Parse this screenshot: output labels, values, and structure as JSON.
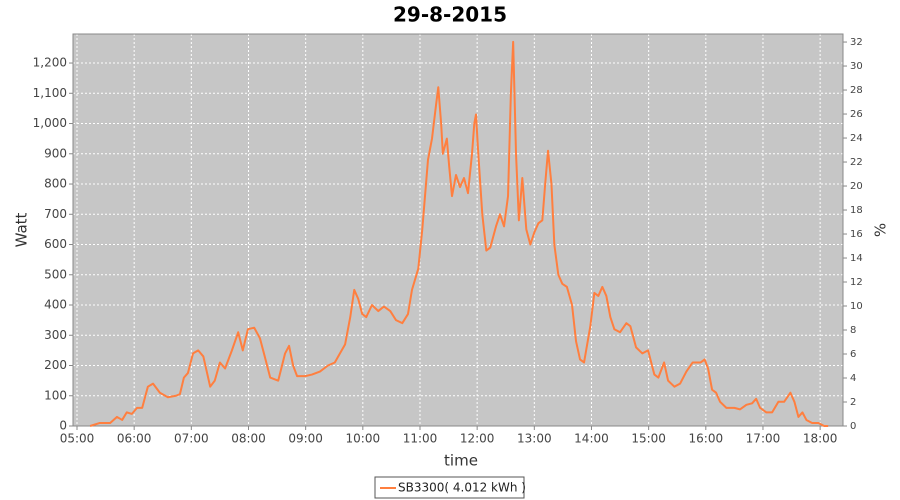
{
  "chart_data": {
    "type": "line",
    "title": "29-8-2015",
    "x_label": "time",
    "y_label": "Watt",
    "y2_label": "%",
    "x": [
      5.23,
      5.4,
      5.58,
      5.7,
      5.79,
      5.87,
      5.96,
      6.05,
      6.14,
      6.24,
      6.33,
      6.45,
      6.59,
      6.73,
      6.8,
      6.87,
      6.94,
      7.03,
      7.12,
      7.21,
      7.33,
      7.41,
      7.5,
      7.59,
      7.71,
      7.82,
      7.9,
      7.99,
      8.1,
      8.2,
      8.27,
      8.38,
      8.52,
      8.64,
      8.71,
      8.78,
      8.85,
      8.99,
      9.11,
      9.25,
      9.39,
      9.51,
      9.6,
      9.69,
      9.78,
      9.85,
      9.92,
      9.99,
      10.06,
      10.16,
      10.27,
      10.37,
      10.48,
      10.58,
      10.69,
      10.79,
      10.86,
      10.97,
      11.04,
      11.14,
      11.21,
      11.28,
      11.32,
      11.37,
      11.4,
      11.47,
      11.51,
      11.56,
      11.63,
      11.7,
      11.77,
      11.84,
      11.91,
      11.95,
      11.98,
      12.02,
      12.09,
      12.16,
      12.23,
      12.33,
      12.4,
      12.47,
      12.54,
      12.59,
      12.63,
      12.68,
      12.73,
      12.79,
      12.86,
      12.93,
      13.0,
      13.07,
      13.14,
      13.19,
      13.24,
      13.3,
      13.35,
      13.42,
      13.49,
      13.57,
      13.66,
      13.73,
      13.8,
      13.87,
      13.98,
      14.05,
      14.12,
      14.19,
      14.26,
      14.33,
      14.4,
      14.5,
      14.61,
      14.68,
      14.78,
      14.89,
      14.99,
      15.1,
      15.17,
      15.27,
      15.34,
      15.45,
      15.55,
      15.66,
      15.77,
      15.91,
      15.98,
      16.04,
      16.11,
      16.18,
      16.25,
      16.36,
      16.5,
      16.6,
      16.71,
      16.81,
      16.88,
      16.95,
      17.06,
      17.16,
      17.27,
      17.37,
      17.48,
      17.55,
      17.62,
      17.69,
      17.76,
      17.86,
      17.97,
      18.07,
      18.14
    ],
    "series": [
      {
        "name": "SB3300( 4.012 kWh )",
        "color": "#ff7f3f",
        "values": [
          0,
          10,
          10,
          30,
          20,
          45,
          40,
          60,
          60,
          130,
          140,
          110,
          95,
          100,
          105,
          160,
          175,
          240,
          250,
          230,
          130,
          150,
          210,
          190,
          250,
          310,
          250,
          320,
          325,
          290,
          240,
          160,
          150,
          240,
          265,
          200,
          165,
          165,
          170,
          180,
          200,
          210,
          240,
          270,
          360,
          450,
          420,
          370,
          360,
          400,
          380,
          395,
          380,
          350,
          340,
          370,
          450,
          520,
          650,
          880,
          950,
          1060,
          1120,
          1000,
          900,
          950,
          860,
          760,
          830,
          790,
          820,
          770,
          900,
          1000,
          1030,
          900,
          700,
          580,
          590,
          660,
          700,
          660,
          760,
          1100,
          1270,
          900,
          680,
          820,
          650,
          600,
          640,
          670,
          680,
          800,
          910,
          800,
          600,
          500,
          470,
          460,
          400,
          280,
          220,
          210,
          330,
          440,
          430,
          460,
          430,
          360,
          320,
          310,
          340,
          330,
          260,
          240,
          250,
          170,
          160,
          210,
          150,
          130,
          140,
          180,
          210,
          210,
          220,
          190,
          120,
          110,
          80,
          60,
          60,
          55,
          70,
          75,
          90,
          60,
          45,
          45,
          80,
          80,
          110,
          80,
          30,
          45,
          20,
          10,
          10,
          0,
          0
        ]
      }
    ],
    "xlim": [
      4.93,
      18.4
    ],
    "xticks": [
      {
        "value": 5,
        "label": "05:00"
      },
      {
        "value": 6,
        "label": "06:00"
      },
      {
        "value": 7,
        "label": "07:00"
      },
      {
        "value": 8,
        "label": "08:00"
      },
      {
        "value": 9,
        "label": "09:00"
      },
      {
        "value": 10,
        "label": "10:00"
      },
      {
        "value": 11,
        "label": "11:00"
      },
      {
        "value": 12,
        "label": "12:00"
      },
      {
        "value": 13,
        "label": "13:00"
      },
      {
        "value": 14,
        "label": "14:00"
      },
      {
        "value": 15,
        "label": "15:00"
      },
      {
        "value": 16,
        "label": "16:00"
      },
      {
        "value": 17,
        "label": "17:00"
      },
      {
        "value": 18,
        "label": "18:00"
      }
    ],
    "ylim": [
      0,
      1296
    ],
    "yticks": [
      0,
      100,
      200,
      300,
      400,
      500,
      600,
      700,
      800,
      900,
      {
        "value": 1000,
        "label": "1,000"
      },
      {
        "value": 1100,
        "label": "1,100"
      },
      {
        "value": 1200,
        "label": "1,200"
      }
    ],
    "y2lim": [
      0,
      32.67
    ],
    "y2ticks": [
      0,
      2,
      4,
      6,
      8,
      10,
      12,
      14,
      16,
      18,
      20,
      22,
      24,
      26,
      28,
      30,
      32
    ],
    "grid": true,
    "plot_background": "#c6c6c6",
    "grid_color": "#ffffff"
  }
}
